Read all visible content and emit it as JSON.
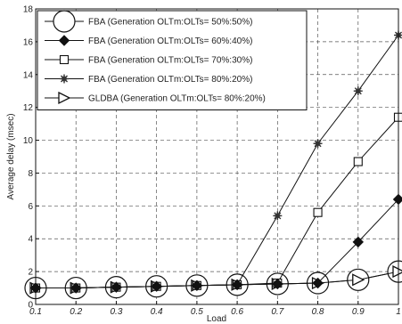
{
  "chart_data": {
    "type": "line",
    "xlabel": "Load",
    "ylabel": "Average delay (msec)",
    "xlim": [
      0.1,
      1
    ],
    "ylim": [
      0,
      18
    ],
    "x": [
      0.1,
      0.2,
      0.3,
      0.4,
      0.5,
      0.6,
      0.7,
      0.8,
      0.9,
      1
    ],
    "x_tick_labels": [
      "0.1",
      "0.2",
      "0.3",
      "0.4",
      "0.5",
      "0.6",
      "0.7",
      "0.8",
      "0.9",
      "1"
    ],
    "y_ticks": [
      0,
      2,
      4,
      6,
      8,
      10,
      12,
      14,
      16,
      18
    ],
    "grid": true,
    "legend_position": "top-left",
    "series": [
      {
        "name": "FBA (Generation OLTm:OLTs= 50%:50%)",
        "marker": "circle",
        "values": [
          1.0,
          1.0,
          1.05,
          1.1,
          1.15,
          1.2,
          1.25,
          1.3,
          1.5,
          2.0
        ]
      },
      {
        "name": "FBA (Generation OLTm:OLTs= 60%:40%)",
        "marker": "diamond",
        "values": [
          1.0,
          1.0,
          1.05,
          1.1,
          1.15,
          1.2,
          1.25,
          1.3,
          3.8,
          6.4
        ]
      },
      {
        "name": "FBA (Generation OLTm:OLTs= 70%:30%)",
        "marker": "square",
        "values": [
          1.0,
          1.0,
          1.05,
          1.1,
          1.15,
          1.2,
          1.3,
          5.6,
          8.7,
          11.4
        ]
      },
      {
        "name": "FBA (Generation OLTm:OLTs= 80%:20%)",
        "marker": "star",
        "values": [
          1.0,
          1.0,
          1.05,
          1.1,
          1.15,
          1.2,
          5.4,
          9.8,
          13.0,
          16.4
        ]
      },
      {
        "name": "GLDBA (Generation OLTm:OLTs= 80%:20%)",
        "marker": "triangle-right",
        "values": [
          1.0,
          1.0,
          1.05,
          1.1,
          1.15,
          1.2,
          1.25,
          1.3,
          1.5,
          2.0
        ]
      }
    ]
  }
}
